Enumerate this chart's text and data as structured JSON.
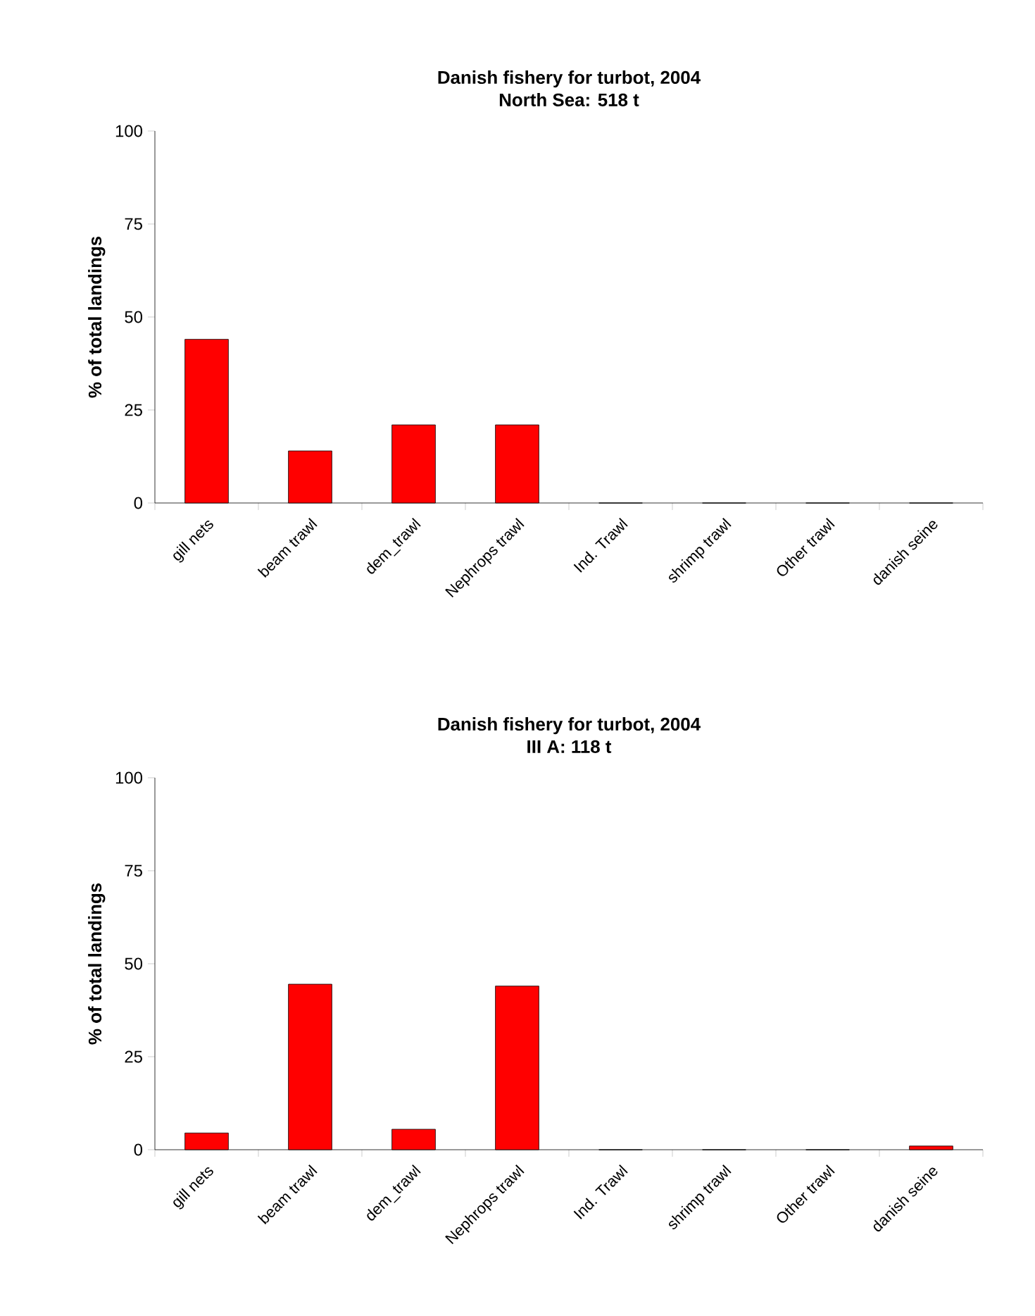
{
  "chart_data": [
    {
      "type": "bar",
      "title": "Danish fishery for turbot, 2004",
      "subtitle": "North Sea: 518 t",
      "ylabel": "% of total landings",
      "categories": [
        "gill nets",
        "beam trawl",
        "dem_trawl",
        "Nephrops trawl",
        "Ind. Trawl",
        "shrimp trawl",
        "Other trawl",
        "danish seine"
      ],
      "values": [
        44,
        14,
        21,
        21,
        0,
        0,
        0,
        0
      ],
      "color": "#ff0000",
      "ylim": [
        0,
        100
      ],
      "yticks": [
        0,
        25,
        50,
        75,
        100
      ]
    },
    {
      "type": "bar",
      "title": "Danish fishery for turbot, 2004",
      "subtitle": "III A: 118 t",
      "ylabel": "% of total landings",
      "categories": [
        "gill nets",
        "beam trawl",
        "dem_trawl",
        "Nephrops trawl",
        "Ind. Trawl",
        "shrimp trawl",
        "Other trawl",
        "danish seine"
      ],
      "values": [
        4.5,
        44.5,
        5.5,
        44,
        0,
        0,
        0,
        1
      ],
      "color": "#ff0000",
      "ylim": [
        0,
        100
      ],
      "yticks": [
        0,
        25,
        50,
        75,
        100
      ]
    }
  ]
}
